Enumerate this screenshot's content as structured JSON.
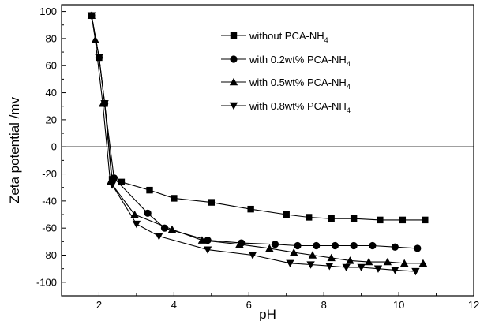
{
  "chart_data": {
    "type": "line",
    "xlabel": "pH",
    "ylabel": "Zeta potential /mv",
    "xlim": [
      1,
      12
    ],
    "ylim": [
      -110,
      105
    ],
    "xticks": [
      2,
      4,
      6,
      8,
      10,
      12
    ],
    "yticks": [
      -100,
      -80,
      -60,
      -40,
      -20,
      0,
      20,
      40,
      60,
      80,
      100
    ],
    "reference_line_y": 0,
    "legend_position": "top-right",
    "series": [
      {
        "name": "without PCA-NH",
        "name_subscript": "4",
        "marker": "square",
        "x": [
          1.8,
          2.0,
          2.15,
          2.35,
          2.6,
          3.35,
          4.0,
          5.0,
          6.05,
          7.0,
          7.6,
          8.2,
          8.8,
          9.5,
          10.1,
          10.7
        ],
        "y": [
          97,
          66,
          32,
          -24,
          -26,
          -32,
          -38,
          -41,
          -46,
          -50,
          -52,
          -53,
          -53,
          -54,
          -54,
          -54
        ]
      },
      {
        "name": "with 0.2wt% PCA-NH",
        "name_subscript": "4",
        "marker": "circle",
        "x": [
          1.8,
          2.0,
          2.15,
          2.4,
          3.3,
          3.75,
          4.9,
          5.8,
          6.7,
          7.3,
          7.8,
          8.3,
          8.8,
          9.3,
          9.9,
          10.5
        ],
        "y": [
          97,
          66,
          32,
          -23,
          -49,
          -60,
          -69,
          -71,
          -72,
          -73,
          -73,
          -73,
          -73,
          -73,
          -74,
          -75
        ],
        "series_note": ""
      },
      {
        "name": "with 0.5wt% PCA-NH",
        "name_subscript": "4",
        "marker": "triangle-up",
        "x": [
          1.8,
          1.9,
          2.1,
          2.3,
          2.95,
          3.95,
          4.75,
          5.75,
          6.55,
          7.2,
          7.7,
          8.2,
          8.7,
          9.2,
          9.7,
          10.15,
          10.65
        ],
        "y": [
          97,
          79,
          32,
          -26,
          -50,
          -61,
          -69,
          -72,
          -75,
          -78,
          -80,
          -82,
          -84,
          -85,
          -85,
          -86,
          -86
        ]
      },
      {
        "name": "with 0.8wt% PCA-NH",
        "name_subscript": "4",
        "marker": "triangle-down",
        "x": [
          1.8,
          2.0,
          2.15,
          2.35,
          3.0,
          3.6,
          4.9,
          6.1,
          7.1,
          7.65,
          8.15,
          8.6,
          9.0,
          9.45,
          9.9,
          10.45
        ],
        "y": [
          97,
          66,
          32,
          -28,
          -57,
          -66,
          -76,
          -80,
          -86,
          -87,
          -88,
          -89,
          -89,
          -90,
          -91,
          -92
        ]
      }
    ]
  }
}
